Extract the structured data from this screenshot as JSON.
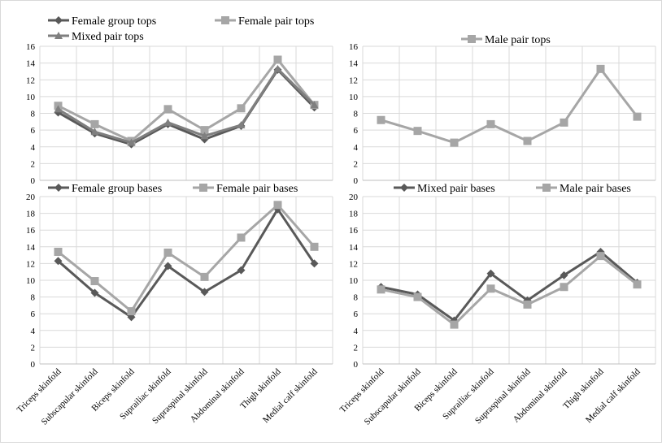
{
  "chart_data": [
    {
      "type": "line",
      "categories": [
        "Triceps skinfold",
        "Subscapular skinfold",
        "Biceps skinfold",
        "Suprailiac skinfold",
        "Supraspinal  skinfold",
        "Abdominal skinfold",
        "Thigh skinfold",
        "Medial calf skinfold"
      ],
      "ylim": [
        0,
        16
      ],
      "yticks": [
        "0",
        "2",
        "4",
        "6",
        "8",
        "10",
        "12",
        "14",
        "16"
      ],
      "grid": true,
      "series": [
        {
          "name": "Female group tops",
          "color": "#595959",
          "marker": "diamond",
          "values": [
            8.1,
            5.6,
            4.3,
            6.7,
            4.9,
            6.5,
            13.2,
            8.7
          ]
        },
        {
          "name": "Female pair tops",
          "color": "#a6a6a6",
          "marker": "square",
          "values": [
            8.9,
            6.7,
            4.7,
            8.5,
            6.0,
            8.6,
            14.4,
            9.0
          ]
        },
        {
          "name": "Mixed pair tops",
          "color": "#7f7f7f",
          "marker": "triangle",
          "values": [
            8.5,
            5.8,
            4.5,
            6.9,
            5.3,
            6.6,
            13.3,
            9.0
          ]
        }
      ]
    },
    {
      "type": "line",
      "categories": [
        "Triceps skinfold",
        "Subscapular skinfold",
        "Biceps skinfold",
        "Suprailiac skinfold",
        "Supraspinal  skinfold",
        "Abdominal skinfold",
        "Thigh skinfold",
        "Medial calf skinfold"
      ],
      "ylim": [
        0,
        16
      ],
      "yticks": [
        "0",
        "2",
        "4",
        "6",
        "8",
        "10",
        "12",
        "14",
        "16"
      ],
      "grid": true,
      "series": [
        {
          "name": "Male pair  tops",
          "color": "#a6a6a6",
          "marker": "square",
          "values": [
            7.2,
            5.9,
            4.5,
            6.7,
            4.7,
            6.9,
            13.3,
            7.6
          ]
        }
      ]
    },
    {
      "type": "line",
      "categories": [
        "Triceps skinfold",
        "Subscapular skinfold",
        "Biceps skinfold",
        "Suprailiac skinfold",
        "Supraspinal  skinfold",
        "Abdominal skinfold",
        "Thigh skinfold",
        "Medial calf skinfold"
      ],
      "ylim": [
        0,
        20
      ],
      "yticks": [
        "0",
        "2",
        "4",
        "6",
        "8",
        "10",
        "12",
        "14",
        "16",
        "18",
        "20"
      ],
      "grid": true,
      "series": [
        {
          "name": "Female group bases",
          "color": "#595959",
          "marker": "diamond",
          "values": [
            12.3,
            8.5,
            5.6,
            11.7,
            8.6,
            11.2,
            18.5,
            12.0
          ]
        },
        {
          "name": "Female pair bases",
          "color": "#a6a6a6",
          "marker": "square",
          "values": [
            13.4,
            9.9,
            6.3,
            13.3,
            10.4,
            15.1,
            19.0,
            14.0
          ]
        }
      ]
    },
    {
      "type": "line",
      "categories": [
        "Triceps skinfold",
        "Subscapular skinfold",
        "Biceps skinfold",
        "Suprailiac skinfold",
        "Supraspinal  skinfold",
        "Abdominal skinfold",
        "Thigh skinfold",
        "Medial calf skinfold"
      ],
      "ylim": [
        0,
        20
      ],
      "yticks": [
        "0",
        "2",
        "4",
        "6",
        "8",
        "10",
        "12",
        "14",
        "16",
        "18",
        "20"
      ],
      "grid": true,
      "series": [
        {
          "name": "Mixed pair bases",
          "color": "#595959",
          "marker": "diamond",
          "values": [
            9.2,
            8.3,
            5.2,
            10.8,
            7.6,
            10.6,
            13.4,
            9.7
          ]
        },
        {
          "name": "Male pair  bases",
          "color": "#a6a6a6",
          "marker": "square",
          "values": [
            8.9,
            8.0,
            4.7,
            9.0,
            7.1,
            9.2,
            12.9,
            9.5
          ]
        }
      ]
    }
  ]
}
